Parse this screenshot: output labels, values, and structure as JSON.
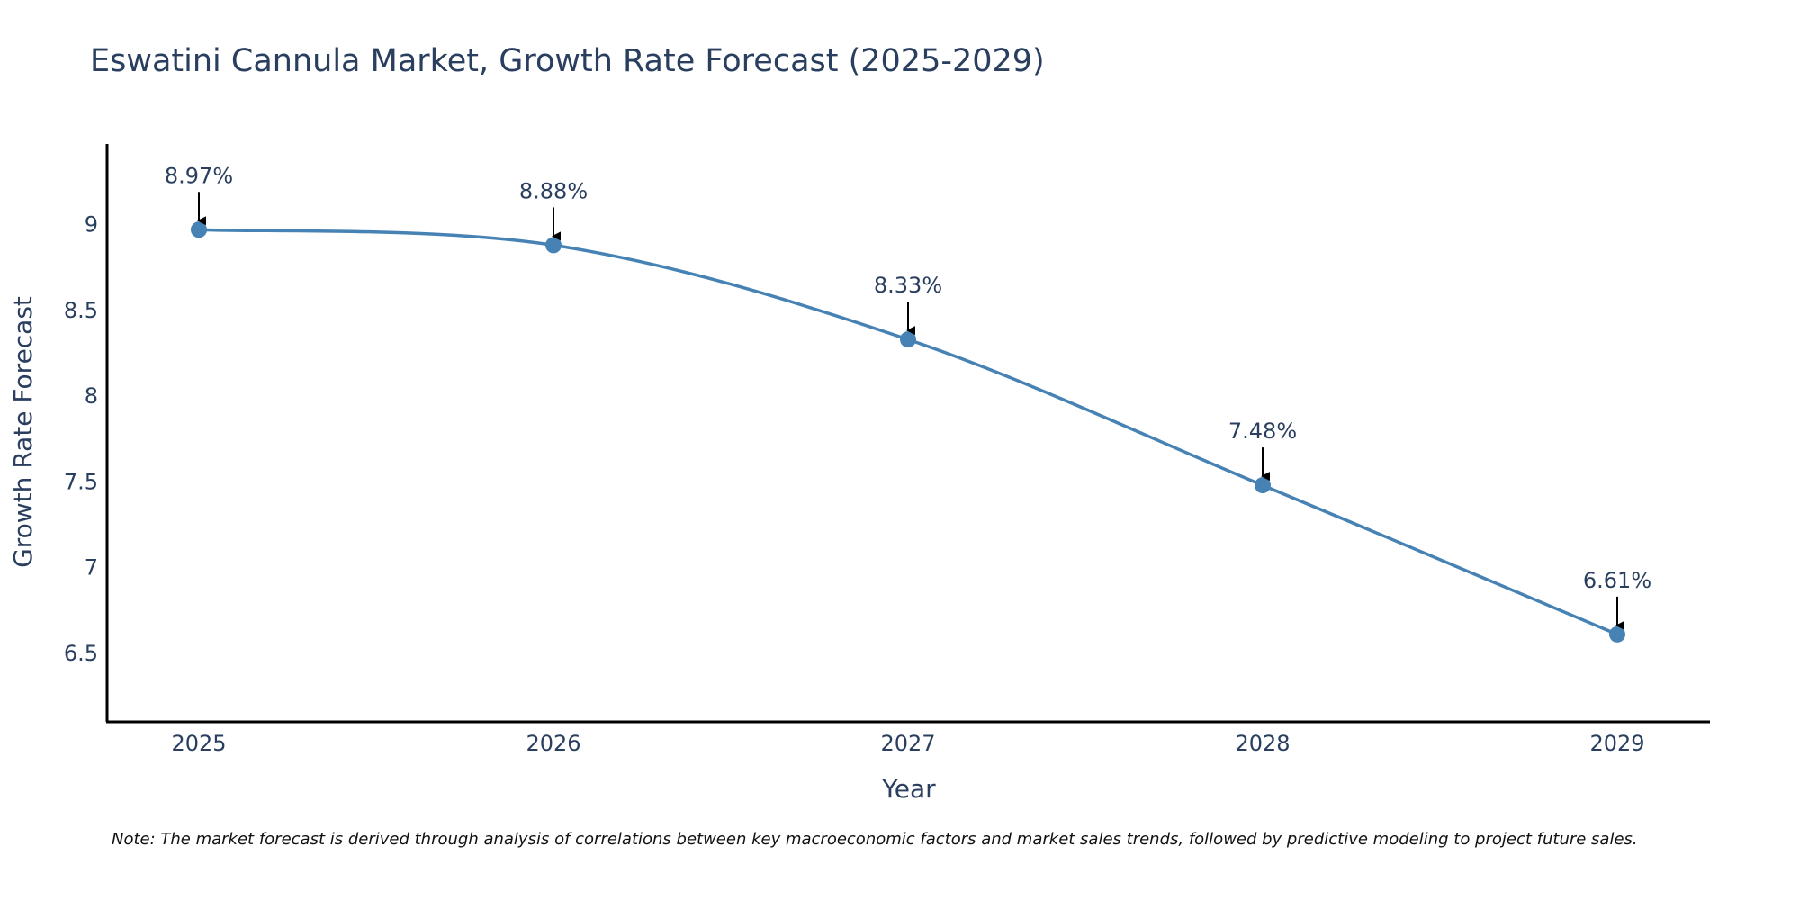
{
  "colors": {
    "line": "#4682B4",
    "marker": "#4682B4",
    "arrow": "#000000",
    "text": "#2a3f5f"
  },
  "chart_data": {
    "type": "line",
    "title": "Eswatini Cannula Market, Growth Rate Forecast (2025-2029)",
    "xlabel": "Year",
    "ylabel": "Growth Rate Forecast",
    "categories": [
      "2025",
      "2026",
      "2027",
      "2028",
      "2029"
    ],
    "values": [
      8.97,
      8.88,
      8.33,
      7.48,
      6.61
    ],
    "data_labels": [
      "8.97%",
      "8.88%",
      "8.33%",
      "7.48%",
      "6.61%"
    ],
    "y_ticks": [
      6.5,
      7,
      7.5,
      8,
      8.5,
      9
    ],
    "y_tick_labels": [
      "6.5",
      "7",
      "7.5",
      "8",
      "8.5",
      "9"
    ],
    "ylim": [
      6.1,
      9.47
    ],
    "grid": false,
    "note": "Note: The market forecast is derived through analysis of correlations between key macroeconomic factors and market sales trends, followed by predictive modeling to project future sales."
  }
}
